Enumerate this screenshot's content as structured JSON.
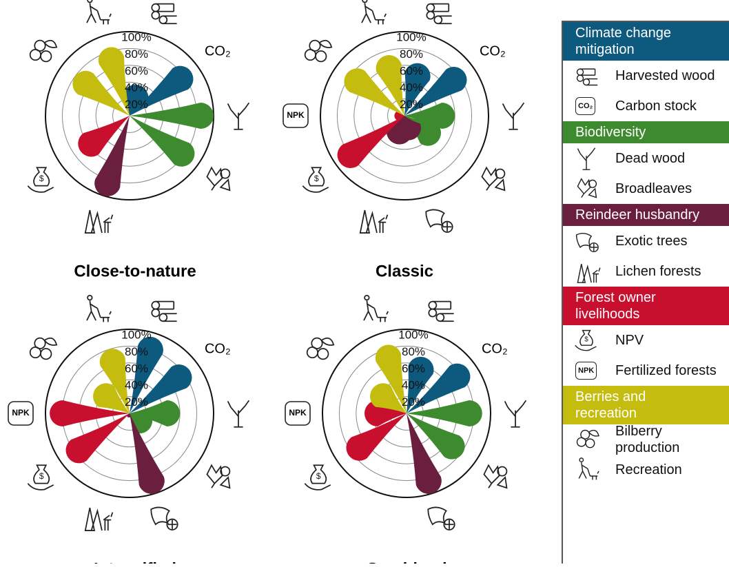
{
  "chart_data": [
    {
      "type": "petal",
      "title": "Close-to-nature",
      "categories": [
        null,
        "CO₂",
        null,
        null,
        null,
        null,
        null,
        "NPK",
        null,
        null
      ],
      "values": [
        38,
        90,
        100,
        92,
        0,
        100,
        72,
        0,
        80,
        85
      ],
      "colors": [
        "#0e5a7e",
        "#0e5a7e",
        "#3d8b2e",
        "#3d8b2e",
        "#6b1f3f",
        "#6b1f3f",
        "#c8102e",
        "#c8102e",
        "#c4bd10",
        "#c4bd10"
      ],
      "rlim": [
        0,
        100
      ],
      "rticks": [
        {
          "value": 20,
          "label": "20%"
        },
        {
          "value": 40,
          "label": "40%"
        },
        {
          "value": 60,
          "label": "60%"
        },
        {
          "value": 80,
          "label": "80%"
        },
        {
          "value": 100,
          "label": "100%"
        }
      ]
    },
    {
      "type": "petal",
      "title": "Classic",
      "categories": [
        null,
        "CO₂",
        null,
        null,
        null,
        null,
        null,
        "NPK",
        null,
        null
      ],
      "values": [
        65,
        88,
        60,
        50,
        30,
        35,
        95,
        12,
        85,
        75
      ],
      "colors": [
        "#0e5a7e",
        "#0e5a7e",
        "#3d8b2e",
        "#3d8b2e",
        "#6b1f3f",
        "#6b1f3f",
        "#c8102e",
        "#c8102e",
        "#c4bd10",
        "#c4bd10"
      ],
      "rlim": [
        0,
        100
      ],
      "rticks": [
        {
          "value": 20,
          "label": "20%"
        },
        {
          "value": 40,
          "label": "40%"
        },
        {
          "value": 60,
          "label": "60%"
        },
        {
          "value": 80,
          "label": "80%"
        },
        {
          "value": 100,
          "label": "100%"
        }
      ]
    },
    {
      "type": "petal",
      "title": "Intensified",
      "categories": [
        null,
        "CO₂",
        null,
        null,
        null,
        null,
        null,
        "NPK",
        null,
        null
      ],
      "values": [
        95,
        88,
        60,
        30,
        100,
        5,
        90,
        95,
        50,
        80
      ],
      "colors": [
        "#0e5a7e",
        "#0e5a7e",
        "#3d8b2e",
        "#3d8b2e",
        "#6b1f3f",
        "#6b1f3f",
        "#c8102e",
        "#c8102e",
        "#c4bd10",
        "#c4bd10"
      ],
      "rlim": [
        0,
        100
      ],
      "rticks": [
        {
          "value": 20,
          "label": "20%"
        },
        {
          "value": 40,
          "label": "40%"
        },
        {
          "value": 60,
          "label": "60%"
        },
        {
          "value": 80,
          "label": "80%"
        },
        {
          "value": 100,
          "label": "100%"
        }
      ]
    },
    {
      "type": "petal",
      "title": "Combined",
      "categories": [
        null,
        "CO₂",
        null,
        null,
        null,
        null,
        null,
        "NPK",
        null,
        null
      ],
      "values": [
        70,
        90,
        90,
        82,
        100,
        0,
        85,
        50,
        50,
        85
      ],
      "colors": [
        "#0e5a7e",
        "#0e5a7e",
        "#3d8b2e",
        "#3d8b2e",
        "#6b1f3f",
        "#6b1f3f",
        "#c8102e",
        "#c8102e",
        "#c4bd10",
        "#c4bd10"
      ],
      "rlim": [
        0,
        100
      ],
      "rticks": [
        {
          "value": 20,
          "label": "20%"
        },
        {
          "value": 40,
          "label": "40%"
        },
        {
          "value": 60,
          "label": "60%"
        },
        {
          "value": 80,
          "label": "80%"
        },
        {
          "value": 100,
          "label": "100%"
        }
      ]
    }
  ],
  "legend": {
    "groups": [
      {
        "name": "Climate change\nmitigation",
        "color": "#0e5a7e",
        "items": [
          {
            "label": "Harvested wood"
          },
          {
            "symbol": "CO₂",
            "label": "Carbon stock"
          }
        ]
      },
      {
        "name": "Biodiversity",
        "color": "#3d8b2e",
        "items": [
          {
            "label": "Dead wood"
          },
          {
            "label": "Broadleaves"
          }
        ]
      },
      {
        "name": "Reindeer husbandry",
        "color": "#6b1f3f",
        "items": [
          {
            "label": "Exotic trees"
          },
          {
            "label": "Lichen forests"
          }
        ]
      },
      {
        "name": "Forest owner\nlivelihoods",
        "color": "#c8102e",
        "items": [
          {
            "label": "NPV"
          },
          {
            "symbol": "NPK",
            "label": "Fertilized forests"
          }
        ]
      },
      {
        "name": "Berries and\nrecreation",
        "color": "#c4bd10",
        "items": [
          {
            "label": "Bilberry\nproduction"
          },
          {
            "label": "Recreation"
          }
        ]
      }
    ]
  }
}
